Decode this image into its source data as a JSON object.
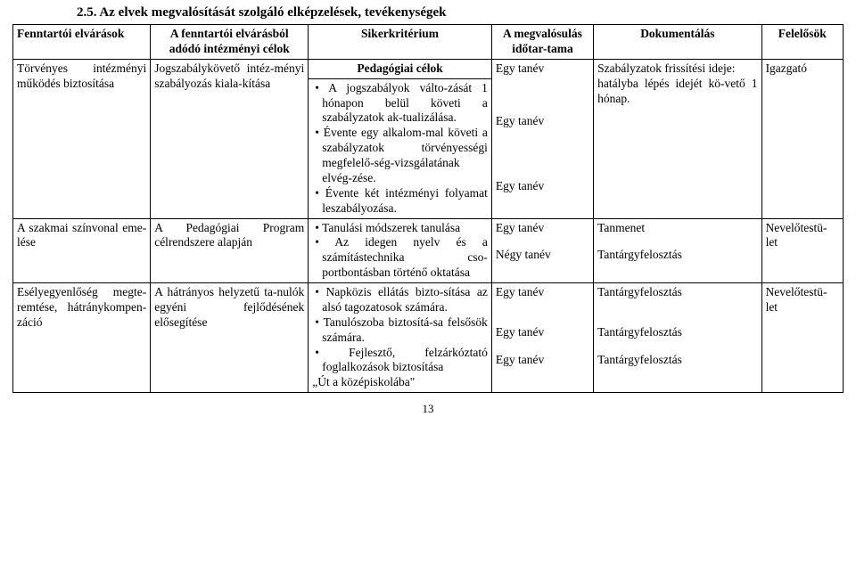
{
  "heading": "2.5.   Az elvek megvalósítását szolgáló elképzelések, tevékenységek",
  "headers": {
    "c1": "Fenntartói elvárások",
    "c2": "A fenntartói elvárásból adódó intézményi célok",
    "c3": "Sikerkritérium",
    "c4": "A megvalósulás időtar-tama",
    "c5": "Dokumentálás",
    "c6": "Felelősök"
  },
  "sectionTitle": "Pedagógiai célok",
  "row1": {
    "c1": "Törvényes intézményi működés biztosítása",
    "c2": "Jogszabálykövető intéz-ményi szabályozás kiala-kítása",
    "c3a": "A jogszabályok válto-zását 1 hónapon belül követi a szabályzatok ak-tualizálása.",
    "c3b": "Évente egy alkalom-mal követi a szabályzatok törvényességi megfelelő-ség-vizsgálatának elvég-zése.",
    "c3c": "Évente két intézményi folyamat leszabályozása.",
    "c4a": "Egy tanév",
    "c4b": "Egy tanév",
    "c4c": "Egy tanév",
    "c5": "Szabályzatok frissítési ideje:\nhatályba lépés idejét kö-vető 1 hónap.",
    "c6": "Igazgató"
  },
  "row2": {
    "c1": "A szakmai színvonal eme-lése",
    "c2": "A Pedagógiai Program célrendszere alapján",
    "c3a": "Tanulási módszerek tanulása",
    "c3b": "Az idegen nyelv és a számítástechnika cso-portbontásban történő oktatása",
    "c4a": "Egy tanév",
    "c4b": "Négy tanév",
    "c5a": "Tanmenet",
    "c5b": "Tantárgyfelosztás",
    "c6": "Nevelőtestü-let"
  },
  "row3": {
    "c1": "Esélyegyenlőség megte-remtése, hátránykompen-záció",
    "c2": "A hátrányos helyzetű ta-nulók egyéni fejlődésének elősegítése",
    "c3a": "Napközis ellátás bizto-sítása az alsó tagozatosok számára.",
    "c3b": "Tanulószoba biztosítá-sa felsősök számára.",
    "c3c": "Fejlesztő, felzárkóztató foglalkozások biztosítása",
    "c3d": "„Út a középiskolába\"",
    "c4a": "Egy tanév",
    "c4b": "Egy tanév",
    "c4c": "Egy tanév",
    "c5a": "Tantárgyfelosztás",
    "c5b": "Tantárgyfelosztás",
    "c5c": "Tantárgyfelosztás",
    "c6": "Nevelőtestü-let"
  },
  "pageNumber": "13"
}
